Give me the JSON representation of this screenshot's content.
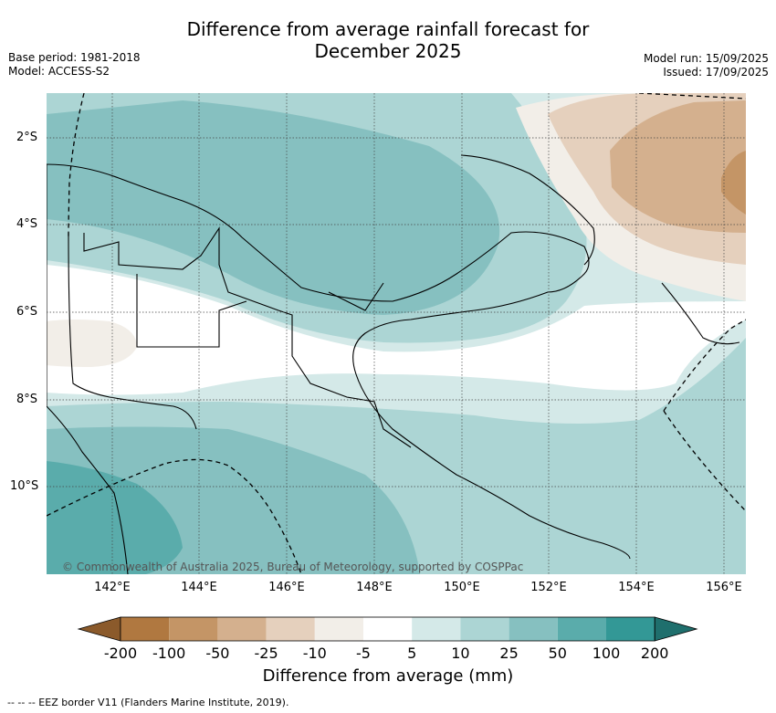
{
  "title_line1": "Difference from average rainfall forecast for",
  "title_line2": "December 2025",
  "base_period": "Base period: 1981-2018",
  "model": "Model: ACCESS-S2",
  "model_run": "Model run: 15/09/2025",
  "issued": "Issued: 17/09/2025",
  "lat_labels": [
    "2°S",
    "4°S",
    "6°S",
    "8°S",
    "10°S"
  ],
  "lon_labels": [
    "142°E",
    "144°E",
    "146°E",
    "148°E",
    "150°E",
    "152°E",
    "154°E",
    "156°E"
  ],
  "colorbar": {
    "title": "Difference from average (mm)",
    "labels": [
      "-200",
      "-100",
      "-50",
      "-25",
      "-10",
      "-5",
      "5",
      "10",
      "25",
      "50",
      "100",
      "200"
    ],
    "colors": [
      "#8b5a2b",
      "#b07840",
      "#c49566",
      "#d4b08e",
      "#e5d0bd",
      "#f2eee8",
      "#ffffff",
      "#d4e9e8",
      "#acd5d4",
      "#86c0c0",
      "#5aacab",
      "#339896",
      "#1f6f6d"
    ]
  },
  "copyright": "© Commonwealth of Australia 2025, Bureau of Meteorology, supported by COSPPac",
  "footnote": "-- -- -- EEZ border V11 (Flanders Marine Institute, 2019)."
}
